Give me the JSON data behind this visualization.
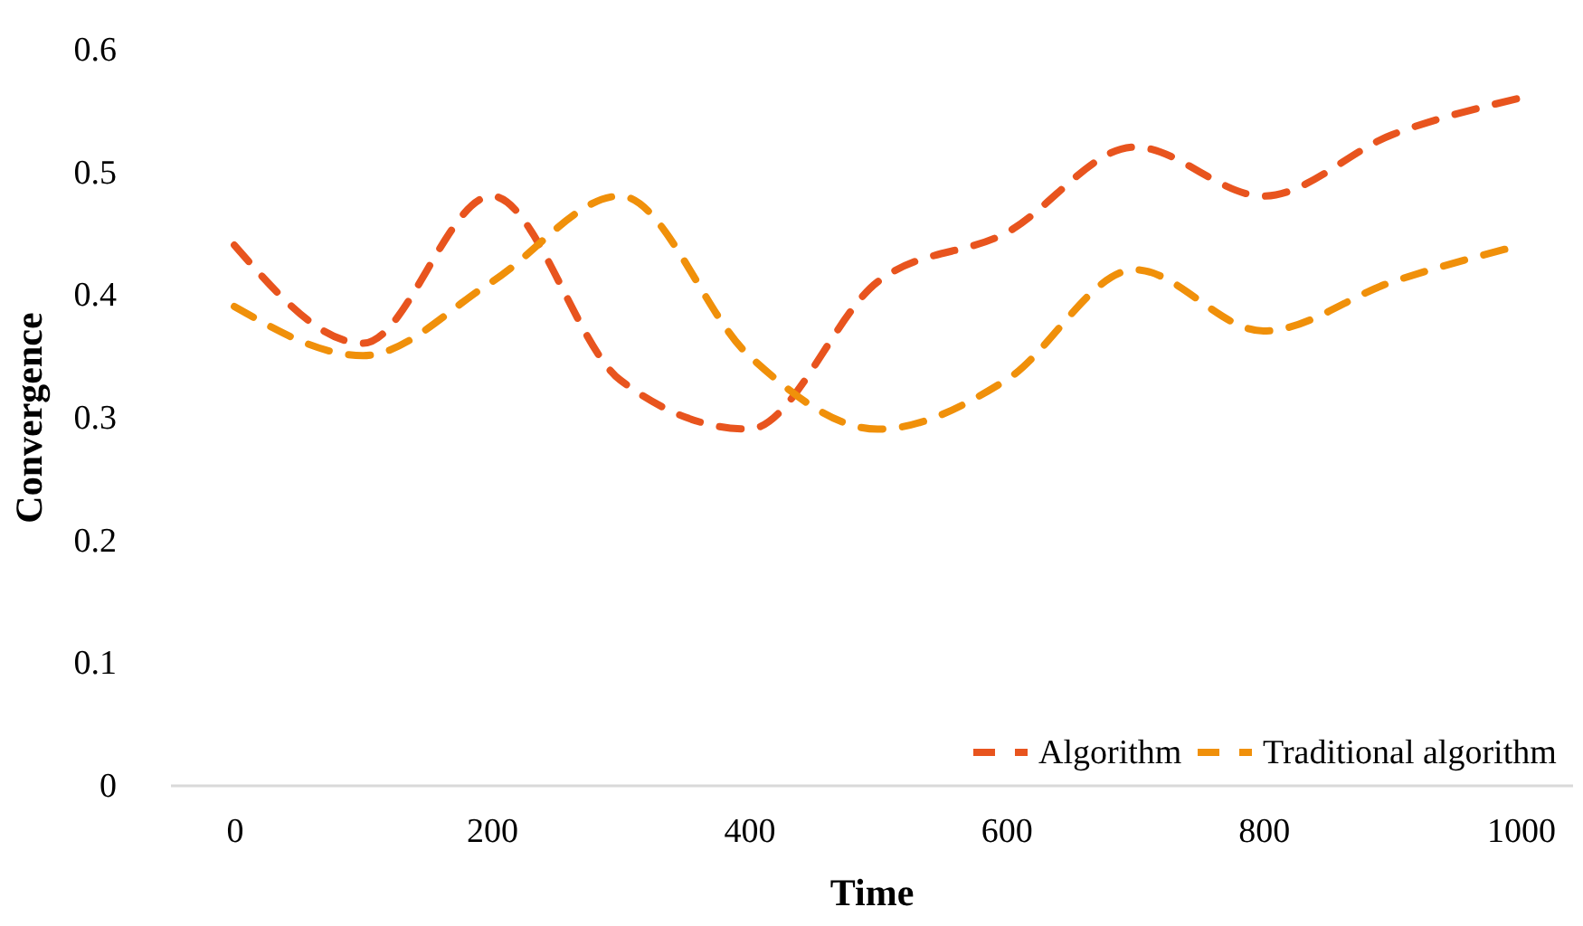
{
  "chart_data": {
    "type": "line",
    "xlabel": "Time",
    "ylabel": "Convergence",
    "x": [
      0,
      100,
      200,
      300,
      400,
      500,
      600,
      700,
      800,
      900,
      1000
    ],
    "series": [
      {
        "name": "Algorithm",
        "color": "#e8541e",
        "values": [
          0.44,
          0.36,
          0.48,
          0.33,
          0.29,
          0.41,
          0.45,
          0.52,
          0.48,
          0.53,
          0.56
        ]
      },
      {
        "name": "Traditional algorithm",
        "color": "#f0900a",
        "values": [
          0.39,
          0.35,
          0.41,
          0.48,
          0.35,
          0.29,
          0.33,
          0.42,
          0.37,
          0.41,
          0.44
        ]
      }
    ],
    "xlim": [
      -50,
      1040
    ],
    "xticks": [
      0,
      200,
      400,
      600,
      800,
      1000
    ],
    "ylim": [
      0,
      0.6
    ],
    "yticks": [
      0,
      0.1,
      0.2,
      0.3,
      0.4,
      0.5,
      0.6
    ],
    "grid": false,
    "legend": "bottom right",
    "line_style": "dashed",
    "marker": "none"
  }
}
